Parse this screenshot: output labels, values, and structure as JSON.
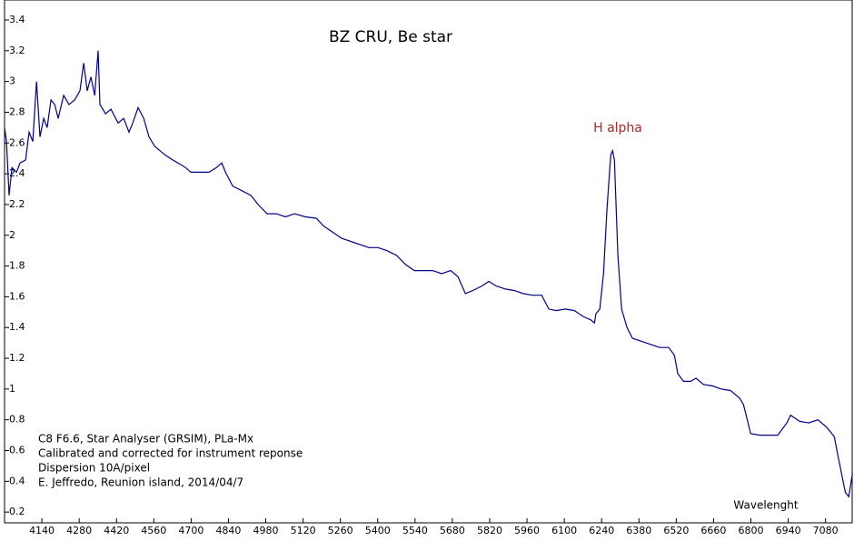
{
  "chart_data": {
    "type": "line",
    "title": "BZ CRU, Be star",
    "annotations": [
      "H alpha"
    ],
    "notes": [
      "C8 F6.6, Star Analyser (GRSIM), PLa-Mx",
      "Calibrated and corrected for instrument reponse",
      "Dispersion 10A/pixel",
      "E. Jeffredo, Reunion island, 2014/04/7"
    ],
    "x_label": "Wavelenght",
    "xlim": [
      4000,
      7180
    ],
    "ylim": [
      0.13,
      3.53
    ],
    "xticks": [
      4140,
      4280,
      4420,
      4560,
      4700,
      4840,
      4980,
      5120,
      5260,
      5400,
      5540,
      5680,
      5820,
      5960,
      6100,
      6240,
      6380,
      6520,
      6660,
      6800,
      6940,
      7080
    ],
    "yticks": [
      0.2,
      0.4,
      0.6,
      0.8,
      1,
      1.2,
      1.4,
      1.6,
      1.8,
      2,
      2.2,
      2.4,
      2.6,
      2.8,
      3,
      3.2,
      3.4
    ],
    "x": [
      4000,
      4007,
      4017,
      4028,
      4045,
      4058,
      4079,
      4092,
      4106,
      4120,
      4133,
      4147,
      4160,
      4174,
      4188,
      4201,
      4222,
      4242,
      4263,
      4283,
      4297,
      4310,
      4324,
      4338,
      4351,
      4358,
      4379,
      4399,
      4426,
      4447,
      4467,
      4481,
      4501,
      4522,
      4542,
      4563,
      4583,
      4604,
      4631,
      4651,
      4679,
      4699,
      4733,
      4767,
      4795,
      4815,
      4829,
      4856,
      4890,
      4924,
      4951,
      4985,
      5020,
      5054,
      5088,
      5129,
      5170,
      5197,
      5231,
      5265,
      5299,
      5333,
      5367,
      5401,
      5435,
      5470,
      5504,
      5538,
      5572,
      5606,
      5640,
      5674,
      5701,
      5729,
      5756,
      5790,
      5817,
      5845,
      5879,
      5913,
      5947,
      5981,
      6015,
      6042,
      6070,
      6104,
      6138,
      6172,
      6199,
      6213,
      6219,
      6233,
      6247,
      6260,
      6274,
      6281,
      6288,
      6301,
      6315,
      6335,
      6356,
      6390,
      6424,
      6458,
      6492,
      6513,
      6526,
      6547,
      6574,
      6594,
      6622,
      6656,
      6690,
      6724,
      6758,
      6772,
      6785,
      6799,
      6833,
      6867,
      6901,
      6935,
      6949,
      6983,
      7017,
      7051,
      7085,
      7113,
      7126,
      7140,
      7154,
      7167,
      7181
    ],
    "series": [
      {
        "name": "BZ CRU",
        "color": "#00008b",
        "values": [
          2.7,
          2.61,
          2.26,
          2.44,
          2.41,
          2.47,
          2.49,
          2.67,
          2.61,
          3.0,
          2.64,
          2.76,
          2.7,
          2.88,
          2.85,
          2.76,
          2.91,
          2.85,
          2.88,
          2.94,
          3.12,
          2.94,
          3.03,
          2.91,
          3.2,
          2.85,
          2.79,
          2.82,
          2.73,
          2.76,
          2.67,
          2.73,
          2.83,
          2.76,
          2.64,
          2.58,
          2.55,
          2.52,
          2.49,
          2.47,
          2.44,
          2.41,
          2.41,
          2.41,
          2.44,
          2.47,
          2.41,
          2.32,
          2.29,
          2.26,
          2.2,
          2.14,
          2.14,
          2.12,
          2.14,
          2.12,
          2.11,
          2.06,
          2.02,
          1.98,
          1.96,
          1.94,
          1.92,
          1.92,
          1.9,
          1.87,
          1.81,
          1.77,
          1.77,
          1.77,
          1.75,
          1.77,
          1.73,
          1.62,
          1.64,
          1.67,
          1.7,
          1.67,
          1.65,
          1.64,
          1.62,
          1.61,
          1.61,
          1.52,
          1.51,
          1.52,
          1.51,
          1.47,
          1.45,
          1.43,
          1.49,
          1.52,
          1.75,
          2.17,
          2.52,
          2.55,
          2.49,
          1.87,
          1.52,
          1.4,
          1.33,
          1.31,
          1.29,
          1.27,
          1.27,
          1.22,
          1.1,
          1.05,
          1.05,
          1.07,
          1.03,
          1.02,
          1.0,
          0.99,
          0.94,
          0.9,
          0.81,
          0.71,
          0.7,
          0.7,
          0.7,
          0.78,
          0.83,
          0.79,
          0.78,
          0.8,
          0.75,
          0.69,
          0.57,
          0.45,
          0.33,
          0.3,
          0.45
        ]
      }
    ]
  }
}
